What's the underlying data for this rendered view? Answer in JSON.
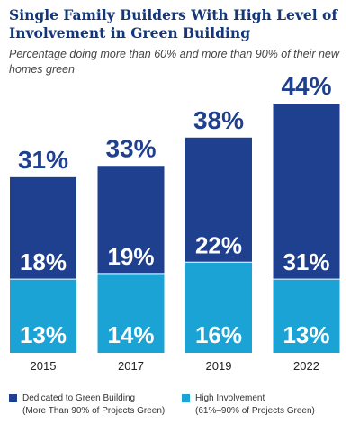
{
  "title": "Single Family Builders With High Level of Involvement in Green Building",
  "subtitle": "Percentage doing more than 60% and more than 90%  of their new homes green",
  "colors": {
    "title": "#14377a",
    "dedicated": "#1f3f8f",
    "high": "#1aa3d4",
    "total_label": "#1f3f8f",
    "segment_label": "#ffffff",
    "year_label": "#222222"
  },
  "chart_data": {
    "type": "bar",
    "stacked": true,
    "title": "Single Family Builders With High Level of Involvement in Green Building",
    "subtitle": "Percentage doing more than 60% and more than 90%  of their new homes green",
    "categories": [
      "2015",
      "2017",
      "2019",
      "2022"
    ],
    "totals": [
      31,
      33,
      38,
      44
    ],
    "total_labels": [
      "31%",
      "33%",
      "38%",
      "44%"
    ],
    "series": [
      {
        "name": "High Involvement (61%–90% of Projects Green)",
        "values": [
          13,
          14,
          16,
          13
        ],
        "labels": [
          "13%",
          "14%",
          "16%",
          "13%"
        ]
      },
      {
        "name": "Dedicated to Green Building (More Than 90% of Projects Green)",
        "values": [
          18,
          19,
          22,
          31
        ],
        "labels": [
          "18%",
          "19%",
          "22%",
          "31%"
        ]
      }
    ],
    "ylim": [
      0,
      44
    ],
    "grid": false,
    "legend_position": "bottom"
  },
  "legend": {
    "dedicated_line1": "Dedicated to Green Building",
    "dedicated_line2": "(More Than 90% of Projects Green)",
    "high_line1": "High Involvement",
    "high_line2": "(61%–90% of Projects Green)"
  }
}
